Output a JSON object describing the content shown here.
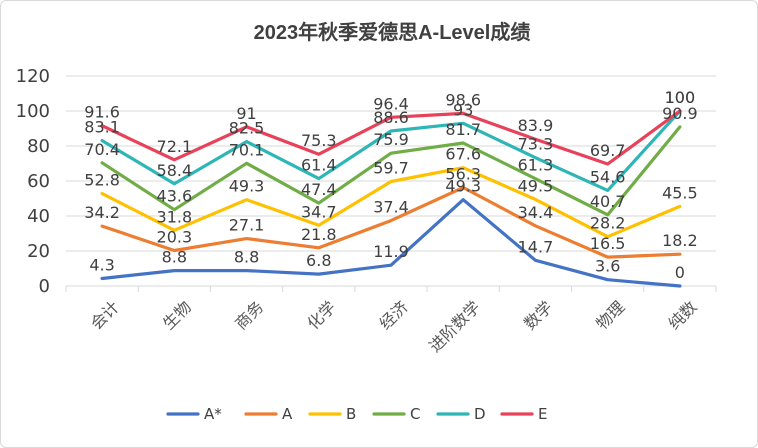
{
  "chart_data": {
    "type": "line",
    "title": "2023年秋季爱德思A-Level成绩",
    "xlabel": "",
    "ylabel": "",
    "categories": [
      "会计",
      "生物",
      "商务",
      "化学",
      "经济",
      "进阶数学",
      "数学",
      "物理",
      "纯数"
    ],
    "ylim": [
      0,
      120
    ],
    "yticks": [
      "0",
      "20",
      "40",
      "60",
      "80",
      "100",
      "120"
    ],
    "grid": true,
    "legend_position": "bottom",
    "series": [
      {
        "name": "A*",
        "color": "#4472C4",
        "values": [
          4.3,
          8.8,
          8.8,
          6.8,
          11.9,
          49.3,
          14.7,
          3.6,
          0
        ]
      },
      {
        "name": "A",
        "color": "#ED7D31",
        "values": [
          34.2,
          20.3,
          27.1,
          21.8,
          37.4,
          56.3,
          34.4,
          16.5,
          18.2
        ]
      },
      {
        "name": "B",
        "color": "#FFC000",
        "values": [
          52.8,
          31.8,
          49.3,
          34.7,
          59.7,
          67.6,
          49.5,
          28.2,
          45.5
        ]
      },
      {
        "name": "C",
        "color": "#70AD47",
        "values": [
          70.4,
          43.6,
          70.1,
          47.4,
          75.9,
          81.7,
          61.3,
          40.7,
          90.9
        ]
      },
      {
        "name": "D",
        "color": "#2EB5B5",
        "values": [
          83.1,
          58.4,
          82.5,
          61.4,
          88.6,
          93,
          73.3,
          54.6,
          100
        ]
      },
      {
        "name": "E",
        "color": "#E8415A",
        "values": [
          91.6,
          72.1,
          91,
          75.3,
          96.4,
          98.6,
          83.9,
          69.7,
          100
        ]
      }
    ],
    "data_labels": [
      [
        "4.3",
        "8.8",
        "8.8",
        "6.8",
        "11.9",
        "49.3",
        "14.7",
        "3.6",
        "0"
      ],
      [
        "34.2",
        "20.3",
        "27.1",
        "21.8",
        "37.4",
        "56.3",
        "34.4",
        "16.5",
        "18.2"
      ],
      [
        "52.8",
        "31.8",
        "49.3",
        "34.7",
        "59.7",
        "67.6",
        "49.5",
        "28.2",
        "45.5"
      ],
      [
        "70.4",
        "43.6",
        "70.1",
        "47.4",
        "75.9",
        "81.7",
        "61.3",
        "40.7",
        "90.9"
      ],
      [
        "83.1",
        "58.4",
        "82.5",
        "61.4",
        "88.6",
        "93",
        "73.3",
        "54.6",
        "100"
      ],
      [
        "91.6",
        "72.1",
        "91",
        "75.3",
        "96.4",
        "98.6",
        "83.9",
        "69.7",
        "100"
      ]
    ]
  }
}
